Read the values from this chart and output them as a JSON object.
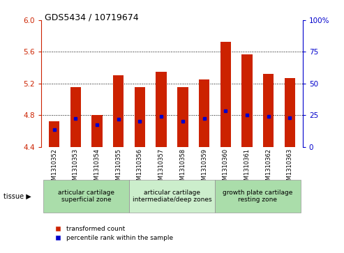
{
  "title": "GDS5434 / 10719674",
  "samples": [
    "GSM1310352",
    "GSM1310353",
    "GSM1310354",
    "GSM1310355",
    "GSM1310356",
    "GSM1310357",
    "GSM1310358",
    "GSM1310359",
    "GSM1310360",
    "GSM1310361",
    "GSM1310362",
    "GSM1310363"
  ],
  "bar_values": [
    4.72,
    5.15,
    4.8,
    5.3,
    5.15,
    5.35,
    5.15,
    5.25,
    5.73,
    5.57,
    5.32,
    5.27
  ],
  "blue_dot_values": [
    4.62,
    4.76,
    4.68,
    4.75,
    4.72,
    4.78,
    4.72,
    4.76,
    4.85,
    4.8,
    4.78,
    4.77
  ],
  "bar_bottom": 4.4,
  "ylim_left": [
    4.4,
    6.0
  ],
  "ylim_right": [
    0,
    100
  ],
  "left_ticks": [
    4.4,
    4.8,
    5.2,
    5.6,
    6.0
  ],
  "right_ticks": [
    0,
    25,
    50,
    75,
    100
  ],
  "right_tick_labels": [
    "0",
    "25",
    "50",
    "75",
    "100%"
  ],
  "dotted_lines": [
    4.8,
    5.2,
    5.6
  ],
  "bar_color": "#CC2200",
  "dot_color": "#0000CC",
  "tissue_groups": [
    {
      "label": "articular cartilage\nsuperficial zone",
      "start": 0,
      "end": 4,
      "color": "#AADDAA"
    },
    {
      "label": "articular cartilage\nintermediate/deep zones",
      "start": 4,
      "end": 8,
      "color": "#CCEECC"
    },
    {
      "label": "growth plate cartilage\nresting zone",
      "start": 8,
      "end": 12,
      "color": "#AADDAA"
    }
  ],
  "tissue_label": "tissue",
  "legend_items": [
    {
      "color": "#CC2200",
      "label": "transformed count"
    },
    {
      "color": "#0000CC",
      "label": "percentile rank within the sample"
    }
  ],
  "bg_color": "#FFFFFF",
  "tick_color_left": "#CC2200",
  "tick_color_right": "#0000CC",
  "xtick_bg": "#CCCCCC"
}
